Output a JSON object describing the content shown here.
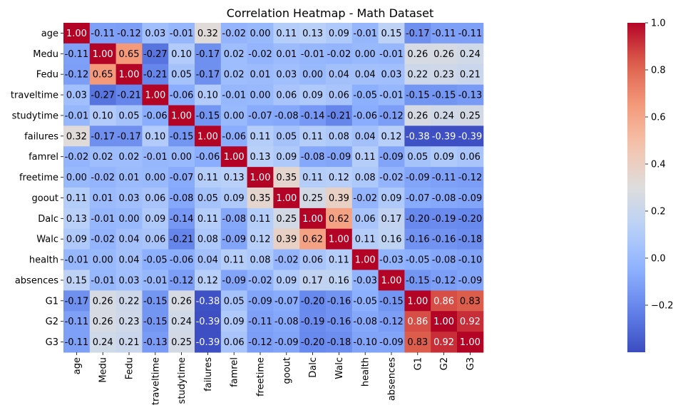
{
  "chart_data": {
    "type": "heatmap",
    "title": "Correlation Heatmap - Math Dataset",
    "xlabel": "",
    "ylabel": "",
    "colormap": "coolwarm",
    "vmin": -0.4,
    "vmax": 1.0,
    "value_format": "2 decimals",
    "row_labels": [
      "age",
      "Medu",
      "Fedu",
      "traveltime",
      "studytime",
      "failures",
      "famrel",
      "freetime",
      "goout",
      "Dalc",
      "Walc",
      "health",
      "absences",
      "G1",
      "G2",
      "G3"
    ],
    "col_labels": [
      "age",
      "Medu",
      "Fedu",
      "traveltime",
      "studytime",
      "failures",
      "famrel",
      "freetime",
      "goout",
      "Dalc",
      "Walc",
      "health",
      "absences",
      "G1",
      "G2",
      "G3"
    ],
    "values": [
      [
        1.0,
        -0.11,
        -0.12,
        0.03,
        -0.01,
        0.32,
        -0.02,
        -0.0,
        0.11,
        0.13,
        0.09,
        -0.01,
        0.15,
        -0.17,
        -0.11,
        -0.11
      ],
      [
        -0.11,
        1.0,
        0.65,
        -0.27,
        0.1,
        -0.17,
        0.02,
        -0.02,
        0.01,
        -0.01,
        -0.02,
        0.0,
        -0.01,
        0.26,
        0.26,
        0.24
      ],
      [
        -0.12,
        0.65,
        1.0,
        -0.21,
        0.05,
        -0.17,
        0.02,
        0.01,
        0.03,
        0.0,
        0.04,
        0.04,
        0.03,
        0.22,
        0.23,
        0.21
      ],
      [
        0.03,
        -0.27,
        -0.21,
        1.0,
        -0.06,
        0.1,
        -0.01,
        0.0,
        0.06,
        0.09,
        0.06,
        -0.05,
        -0.01,
        -0.15,
        -0.15,
        -0.13
      ],
      [
        -0.01,
        0.1,
        0.05,
        -0.06,
        1.0,
        -0.15,
        -0.0,
        -0.07,
        -0.08,
        -0.14,
        -0.21,
        -0.06,
        -0.12,
        0.26,
        0.24,
        0.25
      ],
      [
        0.32,
        -0.17,
        -0.17,
        0.1,
        -0.15,
        1.0,
        -0.06,
        0.11,
        0.05,
        0.11,
        0.08,
        0.04,
        0.12,
        -0.38,
        -0.39,
        -0.39
      ],
      [
        -0.02,
        0.02,
        0.02,
        -0.01,
        -0.0,
        -0.06,
        1.0,
        0.13,
        0.09,
        -0.08,
        -0.09,
        0.11,
        -0.09,
        0.05,
        0.09,
        0.06
      ],
      [
        -0.0,
        -0.02,
        0.01,
        0.0,
        -0.07,
        0.11,
        0.13,
        1.0,
        0.35,
        0.11,
        0.12,
        0.08,
        -0.02,
        -0.09,
        -0.11,
        -0.12
      ],
      [
        0.11,
        0.01,
        0.03,
        0.06,
        -0.08,
        0.05,
        0.09,
        0.35,
        1.0,
        0.25,
        0.39,
        -0.02,
        0.09,
        -0.07,
        -0.08,
        -0.09
      ],
      [
        0.13,
        -0.01,
        0.0,
        0.09,
        -0.14,
        0.11,
        -0.08,
        0.11,
        0.25,
        1.0,
        0.62,
        0.06,
        0.17,
        -0.2,
        -0.19,
        -0.2
      ],
      [
        0.09,
        -0.02,
        0.04,
        0.06,
        -0.21,
        0.08,
        -0.09,
        0.12,
        0.39,
        0.62,
        1.0,
        0.11,
        0.16,
        -0.16,
        -0.16,
        -0.18
      ],
      [
        -0.01,
        0.0,
        0.04,
        -0.05,
        -0.06,
        0.04,
        0.11,
        0.08,
        -0.02,
        0.06,
        0.11,
        1.0,
        -0.03,
        -0.05,
        -0.08,
        -0.1
      ],
      [
        0.15,
        -0.01,
        0.03,
        -0.01,
        -0.12,
        0.12,
        -0.09,
        -0.02,
        0.09,
        0.17,
        0.16,
        -0.03,
        1.0,
        -0.15,
        -0.12,
        -0.09
      ],
      [
        -0.17,
        0.26,
        0.22,
        -0.15,
        0.26,
        -0.38,
        0.05,
        -0.09,
        -0.07,
        -0.2,
        -0.16,
        -0.05,
        -0.15,
        1.0,
        0.86,
        0.83
      ],
      [
        -0.11,
        0.26,
        0.23,
        -0.15,
        0.24,
        -0.39,
        0.09,
        -0.11,
        -0.08,
        -0.19,
        -0.16,
        -0.08,
        -0.12,
        0.86,
        1.0,
        0.92
      ],
      [
        -0.11,
        0.24,
        0.21,
        -0.13,
        0.25,
        -0.39,
        0.06,
        -0.12,
        -0.09,
        -0.2,
        -0.18,
        -0.1,
        -0.09,
        0.83,
        0.92,
        1.0
      ]
    ],
    "colorbar": {
      "ticks": [
        1.0,
        0.8,
        0.6,
        0.4,
        0.2,
        0.0,
        -0.2
      ],
      "tick_labels": [
        "1.0",
        "0.8",
        "0.6",
        "0.4",
        "0.2",
        "0.0",
        "−0.2"
      ]
    }
  }
}
